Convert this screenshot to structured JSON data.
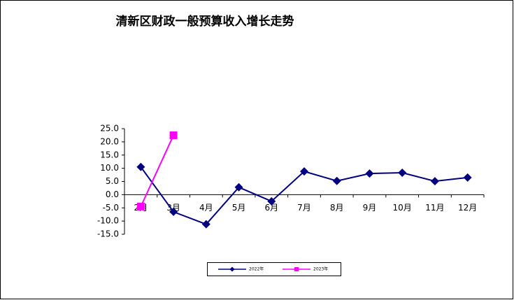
{
  "chart_data": {
    "type": "line",
    "title": "清新区财政一般预算收入增长走势",
    "categories": [
      "2月",
      "3月",
      "4月",
      "5月",
      "6月",
      "7月",
      "8月",
      "9月",
      "10月",
      "11月",
      "12月"
    ],
    "series": [
      {
        "name": "2022年",
        "color": "#000080",
        "marker": "diamond",
        "values": [
          10.5,
          -6.5,
          -11.2,
          2.8,
          -2.5,
          8.8,
          5.2,
          8.0,
          8.3,
          5.1,
          6.5
        ]
      },
      {
        "name": "2023年",
        "color": "#ff00ff",
        "marker": "square",
        "values": [
          -4.5,
          22.5,
          null,
          null,
          null,
          null,
          null,
          null,
          null,
          null,
          null
        ]
      }
    ],
    "ylim": [
      -15,
      25
    ],
    "yticks": [
      {
        "value": -15,
        "label": "-15.0"
      },
      {
        "value": -10,
        "label": "-10.0"
      },
      {
        "value": -5,
        "label": "-5.0"
      },
      {
        "value": 0,
        "label": "0.0"
      },
      {
        "value": 5,
        "label": "5.0"
      },
      {
        "value": 10,
        "label": "10.0"
      },
      {
        "value": 15,
        "label": "15.0"
      },
      {
        "value": 20,
        "label": "20.0"
      },
      {
        "value": 25,
        "label": "25.0"
      }
    ],
    "legend": "bottom"
  }
}
